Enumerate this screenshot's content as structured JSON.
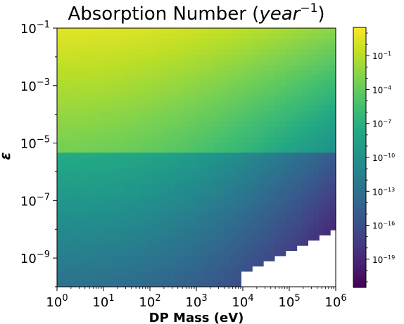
{
  "chart_data": {
    "type": "heatmap",
    "title": {
      "base": "Absorption Number (",
      "italic": "year",
      "superscript": "−1",
      "close": ")"
    },
    "xlabel": "DP Mass (eV)",
    "ylabel": "ε",
    "x_scale": "log",
    "y_scale": "log",
    "xlim": [
      1,
      1000000
    ],
    "ylim": [
      1e-10,
      0.1
    ],
    "x_ticks": [
      {
        "exp": 0,
        "base": "10",
        "sup": "0"
      },
      {
        "exp": 1,
        "base": "10",
        "sup": "1"
      },
      {
        "exp": 2,
        "base": "10",
        "sup": "2"
      },
      {
        "exp": 3,
        "base": "10",
        "sup": "3"
      },
      {
        "exp": 4,
        "base": "10",
        "sup": "4"
      },
      {
        "exp": 5,
        "base": "10",
        "sup": "5"
      },
      {
        "exp": 6,
        "base": "10",
        "sup": "6"
      }
    ],
    "y_ticks": [
      {
        "exp": -1,
        "base": "10",
        "sup": "−1"
      },
      {
        "exp": -3,
        "base": "10",
        "sup": "−3"
      },
      {
        "exp": -5,
        "base": "10",
        "sup": "−5"
      },
      {
        "exp": -7,
        "base": "10",
        "sup": "−7"
      },
      {
        "exp": -9,
        "base": "10",
        "sup": "−9"
      }
    ],
    "colormap": "viridis",
    "color_scale": "log",
    "colorbar_range_log10": [
      -21.5,
      1.5
    ],
    "colorbar_ticks": [
      {
        "exp": -1,
        "base": "10",
        "sup": "−1"
      },
      {
        "exp": -4,
        "base": "10",
        "sup": "−4"
      },
      {
        "exp": -7,
        "base": "10",
        "sup": "−7"
      },
      {
        "exp": -10,
        "base": "10",
        "sup": "−10"
      },
      {
        "exp": -13,
        "base": "10",
        "sup": "−13"
      },
      {
        "exp": -16,
        "base": "10",
        "sup": "−16"
      },
      {
        "exp": -19,
        "base": "10",
        "sup": "−19"
      }
    ],
    "grid": {
      "x_bins": 50,
      "y_bins": 50,
      "log10_eps_transition": -5.4
    },
    "approx_log10_values": {
      "top_left": 0.5,
      "top_right": -2.5,
      "above_transition_left": -3.5,
      "above_transition_right": -10.5,
      "below_transition_left": -7.5,
      "bottom_left": -13,
      "bottom_right_edge": -21,
      "empty_region": "white (no data) at high mass and lowest ε"
    }
  }
}
